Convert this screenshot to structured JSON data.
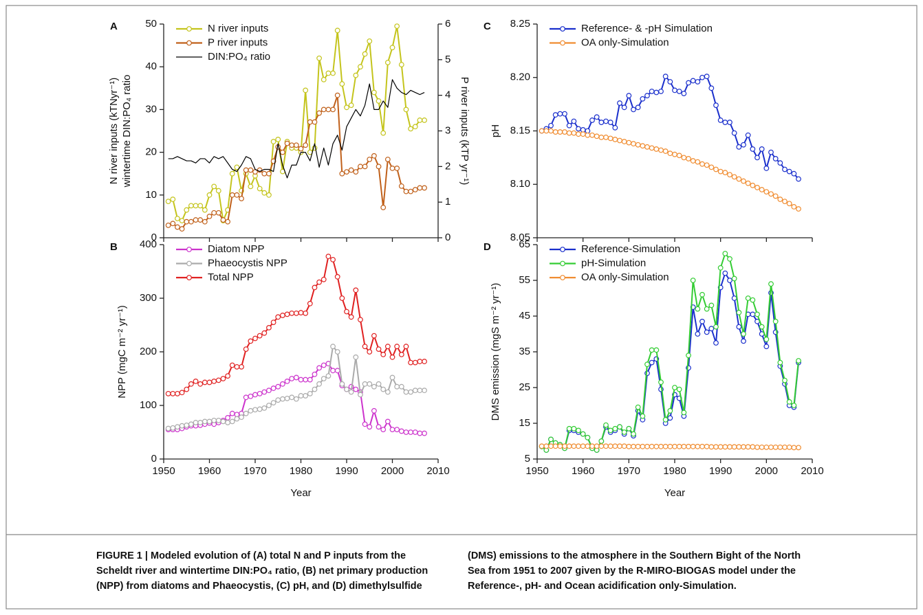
{
  "chart_data": [
    {
      "type": "line",
      "panel_label": "A",
      "ylabel": [
        "N river inputs (kTNyr⁻¹)",
        "wintertime DIN:PO₄ ratio"
      ],
      "y2label": "P river inputs (kTP yr⁻¹)",
      "xlim": [
        1950,
        2010
      ],
      "xticks": [
        1950,
        1960,
        1970,
        1980,
        1990,
        2000,
        2010
      ],
      "show_xtick_labels": false,
      "ylim": [
        0,
        50
      ],
      "yticks": [
        0,
        10,
        20,
        30,
        40,
        50
      ],
      "y2lim": [
        0,
        6
      ],
      "y2ticks": [
        0,
        1,
        2,
        3,
        4,
        5,
        6
      ],
      "legend": "upper left",
      "x": [
        1951,
        1952,
        1953,
        1954,
        1955,
        1956,
        1957,
        1958,
        1959,
        1960,
        1961,
        1962,
        1963,
        1964,
        1965,
        1966,
        1967,
        1968,
        1969,
        1970,
        1971,
        1972,
        1973,
        1974,
        1975,
        1976,
        1977,
        1978,
        1979,
        1980,
        1981,
        1982,
        1983,
        1984,
        1985,
        1986,
        1987,
        1988,
        1989,
        1990,
        1991,
        1992,
        1993,
        1994,
        1995,
        1996,
        1997,
        1998,
        1999,
        2000,
        2001,
        2002,
        2003,
        2004,
        2005,
        2006,
        2007
      ],
      "series": [
        {
          "name": "N river inputs",
          "color": "#c4c41c",
          "marker": true,
          "values": [
            8.5,
            9,
            4.5,
            4,
            6.5,
            7.5,
            7.5,
            7.5,
            6.5,
            10,
            12,
            11,
            4,
            6.5,
            15,
            16.5,
            11,
            15,
            12,
            14.5,
            11.5,
            10.5,
            10,
            22.5,
            23,
            15.5,
            22.5,
            21,
            21,
            20,
            34.5,
            20,
            21,
            42,
            37,
            38.5,
            38.5,
            48.5,
            36,
            30.5,
            31,
            38,
            40,
            43,
            46,
            34,
            32,
            24.5,
            41,
            44.5,
            49.5,
            40.5,
            30,
            25.5,
            26,
            27.5,
            27.5
          ]
        },
        {
          "name": "P river inputs",
          "color": "#c0601a",
          "marker": true,
          "axis": "y2",
          "values": [
            0.35,
            0.4,
            0.3,
            0.25,
            0.45,
            0.45,
            0.5,
            0.5,
            0.45,
            0.6,
            0.7,
            0.7,
            0.5,
            0.45,
            1.2,
            1.2,
            1.1,
            1.9,
            1.9,
            1.85,
            1.9,
            1.8,
            1.8,
            2.15,
            2.55,
            2.4,
            2.65,
            2.6,
            2.6,
            2.5,
            2.6,
            3.25,
            3.25,
            3.5,
            3.6,
            3.6,
            3.6,
            4.0,
            1.8,
            1.85,
            1.9,
            1.85,
            2.0,
            2.0,
            2.2,
            2.3,
            2.0,
            0.85,
            2.2,
            1.95,
            1.95,
            1.45,
            1.3,
            1.3,
            1.35,
            1.4,
            1.4
          ]
        },
        {
          "name": "DIN:PO₄ ratio",
          "color": "#000000",
          "marker": false,
          "values": [
            18.5,
            18.5,
            19,
            18.5,
            18,
            18,
            17.5,
            18.5,
            18.5,
            17.5,
            19,
            18.5,
            19,
            17.5,
            16,
            15.5,
            17,
            19,
            18.5,
            16,
            15.5,
            16,
            16,
            15.5,
            22,
            17,
            14,
            17,
            17,
            20,
            20,
            18,
            22,
            16.5,
            21,
            17,
            22,
            24,
            20.5,
            26,
            28,
            30,
            28.5,
            31,
            36,
            30,
            30,
            32,
            30.5,
            37,
            35,
            34,
            33.5,
            34.5,
            34,
            33.5,
            34
          ]
        }
      ]
    },
    {
      "type": "line",
      "panel_label": "B",
      "ylabel": "NPP (mgC m⁻² yr⁻¹)",
      "xlabel": "Year",
      "xlim": [
        1950,
        2010
      ],
      "xticks": [
        1950,
        1960,
        1970,
        1980,
        1990,
        2000,
        2010
      ],
      "show_xtick_labels": true,
      "ylim": [
        0,
        400
      ],
      "yticks": [
        0,
        100,
        200,
        300,
        400
      ],
      "legend": "upper left",
      "x": [
        1951,
        1952,
        1953,
        1954,
        1955,
        1956,
        1957,
        1958,
        1959,
        1960,
        1961,
        1962,
        1963,
        1964,
        1965,
        1966,
        1967,
        1968,
        1969,
        1970,
        1971,
        1972,
        1973,
        1974,
        1975,
        1976,
        1977,
        1978,
        1979,
        1980,
        1981,
        1982,
        1983,
        1984,
        1985,
        1986,
        1987,
        1988,
        1989,
        1990,
        1991,
        1992,
        1993,
        1994,
        1995,
        1996,
        1997,
        1998,
        1999,
        2000,
        2001,
        2002,
        2003,
        2004,
        2005,
        2006,
        2007
      ],
      "series": [
        {
          "name": "Diatom NPP",
          "color": "#cc33cc",
          "marker": true,
          "values": [
            55,
            55,
            55,
            57,
            60,
            62,
            62,
            63,
            65,
            67,
            65,
            68,
            72,
            77,
            85,
            83,
            85,
            115,
            117,
            120,
            122,
            125,
            128,
            132,
            135,
            140,
            145,
            150,
            152,
            148,
            148,
            148,
            158,
            170,
            175,
            178,
            165,
            165,
            137,
            130,
            135,
            130,
            125,
            65,
            60,
            90,
            60,
            55,
            70,
            55,
            55,
            52,
            50,
            50,
            50,
            48,
            48
          ]
        },
        {
          "name": "Phaeocystis NPP",
          "color": "#aaaaaa",
          "marker": true,
          "values": [
            57,
            58,
            60,
            62,
            63,
            65,
            68,
            68,
            70,
            70,
            72,
            72,
            70,
            68,
            70,
            75,
            78,
            85,
            90,
            92,
            93,
            95,
            100,
            105,
            110,
            112,
            113,
            115,
            112,
            118,
            118,
            122,
            130,
            140,
            150,
            155,
            210,
            200,
            140,
            130,
            125,
            190,
            120,
            140,
            140,
            135,
            140,
            130,
            125,
            152,
            135,
            135,
            125,
            125,
            128,
            128,
            128
          ]
        },
        {
          "name": "Total NPP",
          "color": "#e02020",
          "marker": true,
          "values": [
            122,
            122,
            122,
            124,
            130,
            140,
            145,
            140,
            143,
            143,
            145,
            147,
            150,
            155,
            175,
            172,
            172,
            205,
            220,
            225,
            230,
            235,
            245,
            255,
            265,
            268,
            270,
            272,
            272,
            273,
            272,
            290,
            320,
            330,
            335,
            378,
            372,
            340,
            300,
            275,
            265,
            315,
            260,
            210,
            200,
            230,
            205,
            195,
            210,
            190,
            210,
            195,
            210,
            180,
            180,
            182,
            182
          ]
        }
      ]
    },
    {
      "type": "line",
      "panel_label": "C",
      "ylabel": "pH",
      "xlim": [
        1950,
        2010
      ],
      "xticks": [
        1950,
        1960,
        1970,
        1980,
        1990,
        2000,
        2010
      ],
      "show_xtick_labels": false,
      "ylim": [
        8.05,
        8.25
      ],
      "yticks": [
        8.05,
        {
          "value": 8.1,
          "label": "8.10"
        },
        8.15,
        {
          "value": 8.2,
          "label": "8.20"
        },
        8.25
      ],
      "legend": "upper left",
      "x": [
        1951,
        1952,
        1953,
        1954,
        1955,
        1956,
        1957,
        1958,
        1959,
        1960,
        1961,
        1962,
        1963,
        1964,
        1965,
        1966,
        1967,
        1968,
        1969,
        1970,
        1971,
        1972,
        1973,
        1974,
        1975,
        1976,
        1977,
        1978,
        1979,
        1980,
        1981,
        1982,
        1983,
        1984,
        1985,
        1986,
        1987,
        1988,
        1989,
        1990,
        1991,
        1992,
        1993,
        1994,
        1995,
        1996,
        1997,
        1998,
        1999,
        2000,
        2001,
        2002,
        2003,
        2004,
        2005,
        2006,
        2007
      ],
      "series": [
        {
          "name": "Reference- & -pH Simulation",
          "color": "#1a2fcc",
          "marker": true,
          "values": [
            8.15,
            8.152,
            8.155,
            8.165,
            8.166,
            8.166,
            8.155,
            8.159,
            8.152,
            8.151,
            8.15,
            8.16,
            8.163,
            8.158,
            8.159,
            8.158,
            8.153,
            8.176,
            8.172,
            8.183,
            8.17,
            8.172,
            8.18,
            8.183,
            8.187,
            8.186,
            8.187,
            8.201,
            8.196,
            8.188,
            8.187,
            8.185,
            8.195,
            8.197,
            8.196,
            8.2,
            8.201,
            8.19,
            8.174,
            8.16,
            8.158,
            8.158,
            8.148,
            8.135,
            8.137,
            8.146,
            8.133,
            8.125,
            8.133,
            8.115,
            8.13,
            8.124,
            8.12,
            8.114,
            8.112,
            8.11,
            8.105
          ]
        },
        {
          "name": "OA only-Simulation",
          "color": "#f08c30",
          "marker": true,
          "values": [
            8.15,
            8.15,
            8.15,
            8.149,
            8.149,
            8.149,
            8.148,
            8.148,
            8.147,
            8.147,
            8.146,
            8.146,
            8.145,
            8.144,
            8.144,
            8.143,
            8.142,
            8.141,
            8.14,
            8.139,
            8.138,
            8.137,
            8.136,
            8.135,
            8.134,
            8.133,
            8.132,
            8.131,
            8.129,
            8.128,
            8.127,
            8.125,
            8.124,
            8.122,
            8.121,
            8.119,
            8.118,
            8.116,
            8.114,
            8.112,
            8.111,
            8.109,
            8.107,
            8.105,
            8.103,
            8.101,
            8.099,
            8.097,
            8.095,
            8.093,
            8.091,
            8.089,
            8.086,
            8.084,
            8.082,
            8.079,
            8.077
          ]
        }
      ]
    },
    {
      "type": "line",
      "panel_label": "D",
      "ylabel": "DMS emission (mgS m⁻² yr⁻¹)",
      "xlabel": "Year",
      "xlim": [
        1950,
        2010
      ],
      "xticks": [
        1950,
        1960,
        1970,
        1980,
        1990,
        2000,
        2010
      ],
      "show_xtick_labels": true,
      "ylim": [
        5,
        65
      ],
      "yticks": [
        5,
        15,
        25,
        35,
        45,
        55,
        65
      ],
      "legend": "upper left",
      "x": [
        1951,
        1952,
        1953,
        1954,
        1955,
        1956,
        1957,
        1958,
        1959,
        1960,
        1961,
        1962,
        1963,
        1964,
        1965,
        1966,
        1967,
        1968,
        1969,
        1970,
        1971,
        1972,
        1973,
        1974,
        1975,
        1976,
        1977,
        1978,
        1979,
        1980,
        1981,
        1982,
        1983,
        1984,
        1985,
        1986,
        1987,
        1988,
        1989,
        1990,
        1991,
        1992,
        1993,
        1994,
        1995,
        1996,
        1997,
        1998,
        1999,
        2000,
        2001,
        2002,
        2003,
        2004,
        2005,
        2006,
        2007
      ],
      "series": [
        {
          "name": "Reference-Simulation",
          "color": "#1a2fcc",
          "marker": true,
          "values": [
            8.5,
            7.5,
            10.5,
            9.5,
            9,
            8,
            13,
            13,
            12.5,
            12,
            11,
            8,
            7.5,
            10,
            14,
            12.5,
            13,
            14,
            12,
            13.5,
            11.5,
            18.5,
            16,
            29,
            32,
            33,
            24.5,
            15,
            16.5,
            23,
            22,
            17,
            30.5,
            47.5,
            40,
            43.5,
            40.5,
            41.5,
            37.5,
            53,
            57,
            55,
            50,
            42,
            38,
            45.5,
            45.5,
            43.5,
            40,
            36.5,
            51.5,
            40.5,
            31,
            26,
            20,
            19.5,
            32
          ]
        },
        {
          "name": "pH-Simulation",
          "color": "#33cc33",
          "marker": true,
          "values": [
            8.5,
            7.5,
            10.5,
            9.5,
            9,
            8,
            13.5,
            13.5,
            13,
            12,
            11,
            8,
            7.5,
            10,
            14.5,
            13,
            13.5,
            14,
            12.5,
            13.5,
            12,
            19.5,
            17,
            31.5,
            35.5,
            35.5,
            26.5,
            16,
            18.5,
            25,
            24.5,
            18,
            34,
            55,
            47,
            51,
            47,
            48,
            42,
            58.5,
            62.5,
            61,
            55.5,
            46,
            40,
            50,
            49.5,
            45.5,
            42,
            38.5,
            54,
            43.5,
            32,
            27,
            21,
            20,
            32.5
          ]
        },
        {
          "name": "OA only-Simulation",
          "color": "#f08c30",
          "marker": true,
          "values": [
            8.6,
            8.6,
            8.6,
            8.6,
            8.6,
            8.6,
            8.6,
            8.6,
            8.6,
            8.6,
            8.6,
            8.6,
            8.6,
            8.6,
            8.6,
            8.6,
            8.6,
            8.6,
            8.6,
            8.5,
            8.5,
            8.5,
            8.5,
            8.5,
            8.5,
            8.5,
            8.5,
            8.5,
            8.5,
            8.5,
            8.5,
            8.5,
            8.5,
            8.5,
            8.5,
            8.5,
            8.5,
            8.4,
            8.4,
            8.4,
            8.4,
            8.4,
            8.4,
            8.4,
            8.4,
            8.4,
            8.4,
            8.3,
            8.3,
            8.3,
            8.3,
            8.3,
            8.3,
            8.3,
            8.3,
            8.2,
            8.2
          ]
        }
      ]
    }
  ],
  "caption": {
    "left": [
      "FIGURE 1 | Modeled evolution of (A) total N and P inputs from the",
      "Scheldt river and wintertime DIN:PO₄ ratio, (B) net primary production",
      "(NPP) from diatoms and Phaeocystis, (C) pH, and (D) dimethylsulfide"
    ],
    "right": [
      "(DMS) emissions to the atmosphere in the Southern Bight of the North",
      "Sea from 1951 to 2007 given by the R-MIRO-BIOGAS model under the",
      "Reference-, pH- and Ocean acidification only-Simulation."
    ]
  }
}
